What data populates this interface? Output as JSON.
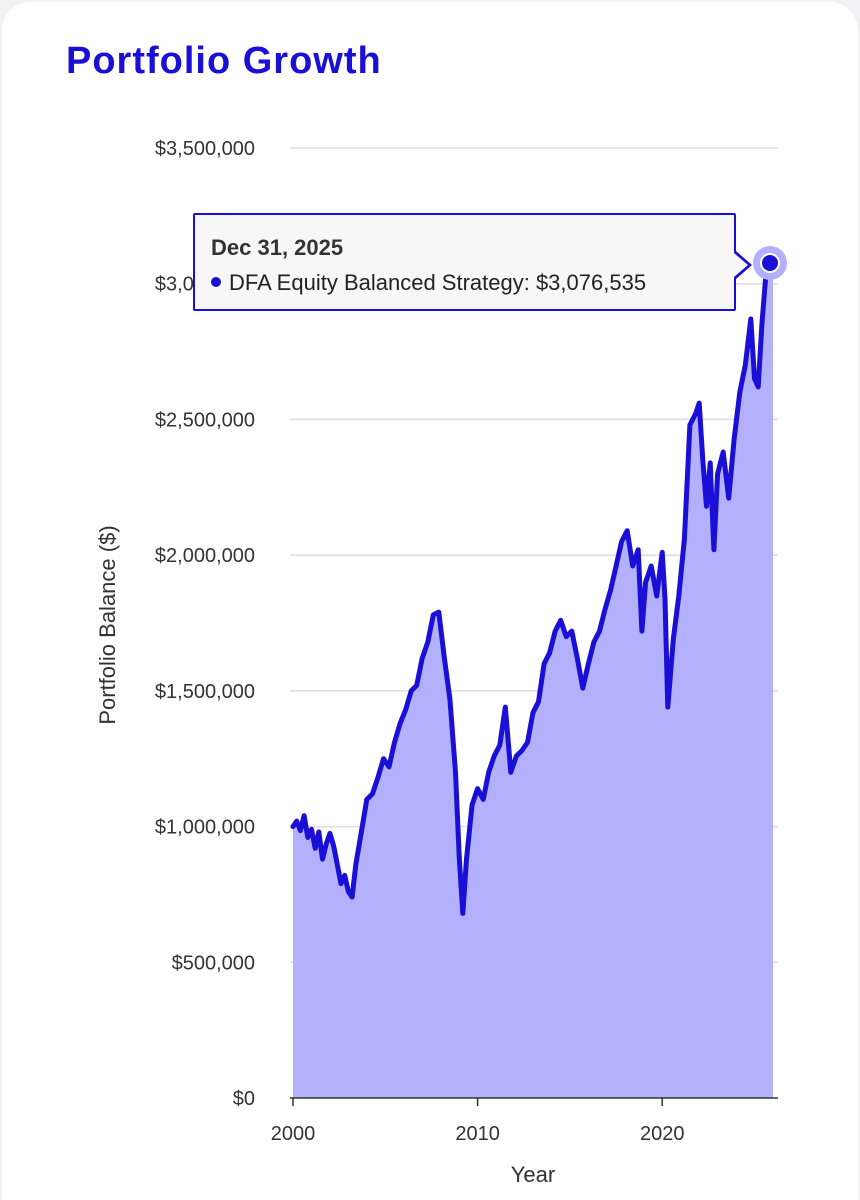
{
  "title": "Portfolio Growth",
  "colors": {
    "line": "#1a0fd6",
    "area": "#b3b1fd",
    "grid": "#dddddd",
    "marker_halo": "#b3b1fd"
  },
  "tooltip": {
    "date": "Dec 31, 2025",
    "series_label": "DFA Equity Balanced Strategy",
    "value_text": "$3,076,535",
    "text": "DFA Equity Balanced Strategy: $3,076,535"
  },
  "chart_data": {
    "type": "area",
    "title": "Portfolio Growth",
    "xlabel": "Year",
    "ylabel": "Portfolio Balance ($)",
    "xlim": [
      2000,
      2026
    ],
    "ylim": [
      0,
      3500000
    ],
    "xticks": [
      2000,
      2010,
      2020
    ],
    "xtick_labels": [
      "2000",
      "2010",
      "2020"
    ],
    "yticks": [
      0,
      500000,
      1000000,
      1500000,
      2000000,
      2500000,
      3000000,
      3500000
    ],
    "ytick_labels": [
      "$0",
      "$500,000",
      "$1,000,000",
      "$1,500,000",
      "$2,000,000",
      "$2,500,000",
      "$3,000,000",
      "$3,500,000"
    ],
    "grid": true,
    "legend": "none",
    "series": [
      {
        "name": "DFA Equity Balanced Strategy",
        "x": [
          2000.0,
          2000.2,
          2000.4,
          2000.6,
          2000.8,
          2001.0,
          2001.2,
          2001.4,
          2001.6,
          2001.8,
          2002.0,
          2002.2,
          2002.4,
          2002.6,
          2002.8,
          2003.0,
          2003.2,
          2003.4,
          2003.6,
          2003.8,
          2004.0,
          2004.3,
          2004.6,
          2004.9,
          2005.2,
          2005.5,
          2005.8,
          2006.1,
          2006.4,
          2006.7,
          2007.0,
          2007.3,
          2007.6,
          2007.9,
          2008.2,
          2008.5,
          2008.8,
          2009.0,
          2009.2,
          2009.4,
          2009.7,
          2010.0,
          2010.3,
          2010.6,
          2010.9,
          2011.2,
          2011.5,
          2011.8,
          2012.1,
          2012.4,
          2012.7,
          2013.0,
          2013.3,
          2013.6,
          2013.9,
          2014.2,
          2014.5,
          2014.8,
          2015.1,
          2015.4,
          2015.7,
          2016.0,
          2016.3,
          2016.6,
          2016.9,
          2017.2,
          2017.5,
          2017.8,
          2018.1,
          2018.4,
          2018.7,
          2018.9,
          2019.1,
          2019.4,
          2019.7,
          2020.0,
          2020.15,
          2020.3,
          2020.6,
          2020.9,
          2021.2,
          2021.5,
          2021.8,
          2022.0,
          2022.2,
          2022.4,
          2022.6,
          2022.8,
          2023.0,
          2023.3,
          2023.6,
          2023.9,
          2024.2,
          2024.5,
          2024.8,
          2025.0,
          2025.2,
          2025.4,
          2025.6,
          2025.8,
          2026.0
        ],
        "values": [
          1000000,
          1020000,
          985000,
          1040000,
          960000,
          990000,
          920000,
          980000,
          880000,
          935000,
          975000,
          930000,
          860000,
          790000,
          820000,
          760000,
          740000,
          860000,
          940000,
          1020000,
          1100000,
          1120000,
          1180000,
          1250000,
          1220000,
          1310000,
          1380000,
          1430000,
          1500000,
          1520000,
          1620000,
          1680000,
          1780000,
          1790000,
          1620000,
          1470000,
          1200000,
          890000,
          680000,
          880000,
          1080000,
          1140000,
          1100000,
          1200000,
          1260000,
          1300000,
          1440000,
          1200000,
          1260000,
          1280000,
          1310000,
          1420000,
          1460000,
          1600000,
          1640000,
          1720000,
          1760000,
          1700000,
          1720000,
          1620000,
          1510000,
          1600000,
          1680000,
          1720000,
          1800000,
          1870000,
          1960000,
          2050000,
          2090000,
          1960000,
          2020000,
          1720000,
          1900000,
          1960000,
          1850000,
          2010000,
          1840000,
          1440000,
          1690000,
          1850000,
          2060000,
          2480000,
          2520000,
          2560000,
          2350000,
          2180000,
          2340000,
          2020000,
          2300000,
          2380000,
          2210000,
          2430000,
          2600000,
          2700000,
          2870000,
          2650000,
          2620000,
          2850000,
          3020000,
          3100000,
          3076535
        ]
      }
    ],
    "highlight": {
      "x": 2026.0,
      "value": 3076535
    }
  }
}
